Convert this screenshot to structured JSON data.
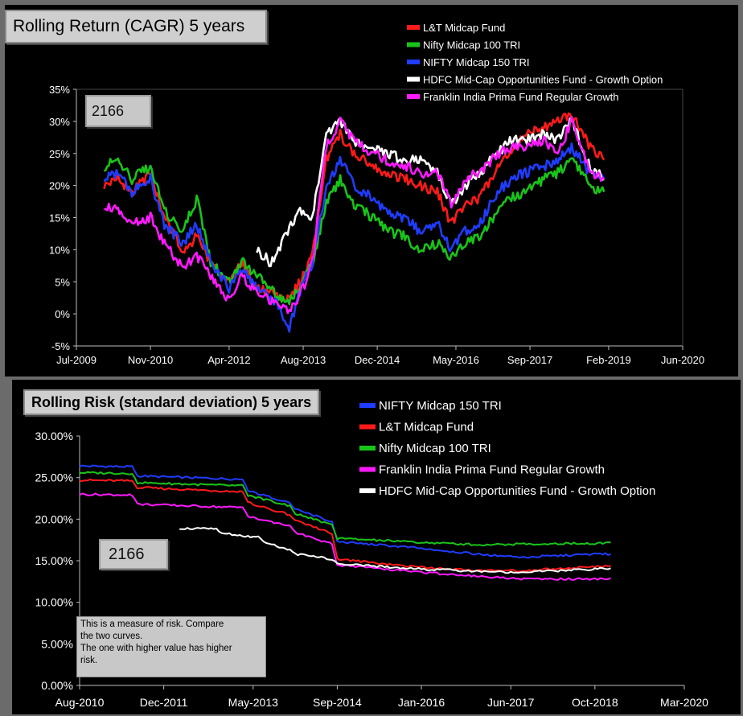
{
  "chart_data": [
    {
      "type": "line",
      "title": "Rolling Return (CAGR) 5 years",
      "badge": "2166",
      "xlim": [
        "Jul-2009",
        "Jun-2020"
      ],
      "ylim": [
        -5,
        35
      ],
      "x_tick_labels": [
        "Jul-2009",
        "Nov-2010",
        "Apr-2012",
        "Aug-2013",
        "Dec-2014",
        "May-2016",
        "Sep-2017",
        "Feb-2019",
        "Jun-2020"
      ],
      "y_tick_labels": [
        "-5%",
        "0%",
        "5%",
        "10%",
        "15%",
        "20%",
        "25%",
        "30%",
        "35%"
      ],
      "legend_position": "top-right",
      "series": [
        {
          "name": "L&T Midcap Fund",
          "color": "#ff1a1a",
          "x": [
            "Jan-2010",
            "Apr-2010",
            "Jul-2010",
            "Nov-2010",
            "Feb-2011",
            "Jun-2011",
            "Sep-2011",
            "Dec-2011",
            "Apr-2012",
            "Jul-2012",
            "Oct-2012",
            "Feb-2013",
            "May-2013",
            "Aug-2013",
            "Oct-2013",
            "Jan-2014",
            "Apr-2014",
            "Jul-2014",
            "Nov-2014",
            "Feb-2015",
            "Jun-2015",
            "Sep-2015",
            "Jan-2016",
            "Apr-2016",
            "Jul-2016",
            "Oct-2016",
            "Feb-2017",
            "May-2017",
            "Aug-2017",
            "Dec-2017",
            "Mar-2018",
            "Jun-2018",
            "Oct-2018",
            "Jan-2019"
          ],
          "y": [
            20,
            21,
            19,
            22,
            15,
            10,
            12,
            8,
            5,
            8,
            4,
            3,
            2,
            6,
            9,
            24,
            28,
            25,
            23,
            22,
            21,
            20,
            19,
            14,
            17,
            18,
            23,
            25,
            28,
            29,
            30,
            31,
            26,
            24
          ]
        },
        {
          "name": "Nifty Midcap 100 TRI",
          "color": "#19c419",
          "x": [
            "Jan-2010",
            "Apr-2010",
            "Jul-2010",
            "Nov-2010",
            "Feb-2011",
            "Jun-2011",
            "Sep-2011",
            "Dec-2011",
            "Apr-2012",
            "Jul-2012",
            "Oct-2012",
            "Feb-2013",
            "May-2013",
            "Aug-2013",
            "Oct-2013",
            "Jan-2014",
            "Apr-2014",
            "Jul-2014",
            "Nov-2014",
            "Feb-2015",
            "Jun-2015",
            "Sep-2015",
            "Jan-2016",
            "Apr-2016",
            "Jul-2016",
            "Oct-2016",
            "Feb-2017",
            "May-2017",
            "Aug-2017",
            "Dec-2017",
            "Mar-2018",
            "Jun-2018",
            "Oct-2018",
            "Jan-2019"
          ],
          "y": [
            23,
            24,
            21,
            23,
            16,
            13,
            18,
            8,
            5,
            8,
            6,
            3,
            2,
            5,
            8,
            17,
            21,
            17,
            15,
            13,
            12,
            10,
            11,
            9,
            11,
            12,
            16,
            18,
            19,
            21,
            22,
            24,
            20,
            19
          ]
        },
        {
          "name": "NIFTY Midcap 150 TRI",
          "color": "#1f3cff",
          "x": [
            "Jan-2010",
            "Apr-2010",
            "Jul-2010",
            "Nov-2010",
            "Feb-2011",
            "Jun-2011",
            "Sep-2011",
            "Dec-2011",
            "Apr-2012",
            "Jul-2012",
            "Oct-2012",
            "Feb-2013",
            "May-2013",
            "Aug-2013",
            "Oct-2013",
            "Jan-2014",
            "Apr-2014",
            "Jul-2014",
            "Nov-2014",
            "Feb-2015",
            "Jun-2015",
            "Sep-2015",
            "Jan-2016",
            "Apr-2016",
            "Jul-2016",
            "Oct-2016",
            "Feb-2017",
            "May-2017",
            "Aug-2017",
            "Dec-2017",
            "Mar-2018",
            "Jun-2018",
            "Oct-2018",
            "Jan-2019"
          ],
          "y": [
            21,
            22,
            19,
            21,
            14,
            11,
            14,
            8,
            4,
            7,
            4,
            2,
            -2,
            5,
            8,
            20,
            24,
            20,
            18,
            16,
            15,
            13,
            14,
            10,
            13,
            14,
            19,
            21,
            22,
            23,
            24,
            26,
            22,
            21
          ]
        },
        {
          "name": "HDFC Mid-Cap Opportunities Fund - Growth Option",
          "color": "#ffffff",
          "x": [
            "Oct-2012",
            "Jan-2013",
            "Apr-2013",
            "Jul-2013",
            "Oct-2013",
            "Jan-2014",
            "Apr-2014",
            "Jul-2014",
            "Nov-2014",
            "Feb-2015",
            "Jun-2015",
            "Sep-2015",
            "Jan-2016",
            "Apr-2016",
            "Jul-2016",
            "Oct-2016",
            "Feb-2017",
            "May-2017",
            "Aug-2017",
            "Dec-2017",
            "Mar-2018",
            "Jun-2018",
            "Oct-2018",
            "Jan-2019"
          ],
          "y": [
            10,
            8,
            12,
            16,
            15,
            28,
            30,
            27,
            26,
            25,
            24,
            24,
            22,
            17,
            20,
            22,
            25,
            27,
            27,
            28,
            27,
            30,
            23,
            21
          ]
        },
        {
          "name": "Franklin India Prima Fund Regular Growth",
          "color": "#ff1aff",
          "x": [
            "Jan-2010",
            "Apr-2010",
            "Jul-2010",
            "Nov-2010",
            "Feb-2011",
            "Jun-2011",
            "Sep-2011",
            "Dec-2011",
            "Apr-2012",
            "Jul-2012",
            "Oct-2012",
            "Feb-2013",
            "May-2013",
            "Aug-2013",
            "Oct-2013",
            "Jan-2014",
            "Apr-2014",
            "Jul-2014",
            "Nov-2014",
            "Feb-2015",
            "Jun-2015",
            "Sep-2015",
            "Jan-2016",
            "Apr-2016",
            "Jul-2016",
            "Oct-2016",
            "Feb-2017",
            "May-2017",
            "Aug-2017",
            "Dec-2017",
            "Mar-2018",
            "Jun-2018",
            "Oct-2018",
            "Jan-2019"
          ],
          "y": [
            17,
            16,
            14,
            15,
            11,
            7,
            9,
            6,
            2,
            6,
            3,
            2,
            0,
            4,
            8,
            26,
            30,
            27,
            25,
            24,
            23,
            22,
            22,
            17,
            21,
            22,
            25,
            26,
            26,
            27,
            25,
            30,
            22,
            21
          ]
        }
      ]
    },
    {
      "type": "line",
      "title": "Rolling Risk (standard deviation) 5 years",
      "badge": "2166",
      "note": [
        "This is a measure of risk.  Compare",
        "the two curves.",
        "The one with higher value has higher",
        "risk."
      ],
      "xlim": [
        "Aug-2010",
        "Mar-2020"
      ],
      "ylim": [
        0,
        30
      ],
      "x_tick_labels": [
        "Aug-2010",
        "Dec-2011",
        "May-2013",
        "Sep-2014",
        "Jan-2016",
        "Jun-2017",
        "Oct-2018",
        "Mar-2020"
      ],
      "y_tick_labels": [
        "0.00%",
        "5.00%",
        "10.00%",
        "15.00%",
        "20.00%",
        "25.00%",
        "30.00%"
      ],
      "legend_position": "top-right",
      "series": [
        {
          "name": "NIFTY Midcap 150 TRI",
          "color": "#1f3cff",
          "x": [
            "Aug-2010",
            "Jun-2011",
            "Jul-2011",
            "Mar-2013",
            "Apr-2013",
            "Dec-2013",
            "Jan-2014",
            "Aug-2014",
            "Sep-2014",
            "Jan-2016",
            "Jan-2017",
            "Aug-2017",
            "Oct-2018",
            "Jan-2019"
          ],
          "y": [
            26.4,
            26.3,
            25.2,
            24.8,
            23.4,
            22.0,
            21.2,
            19.7,
            17.3,
            16.5,
            15.7,
            15.4,
            15.8,
            15.8
          ]
        },
        {
          "name": "L&T Midcap Fund",
          "color": "#ff1a1a",
          "x": [
            "Aug-2010",
            "Jun-2011",
            "Jul-2011",
            "Mar-2013",
            "Apr-2013",
            "Dec-2013",
            "Jan-2014",
            "Aug-2014",
            "Sep-2014",
            "Jan-2016",
            "Jan-2017",
            "Aug-2017",
            "Oct-2018",
            "Jan-2019"
          ],
          "y": [
            24.7,
            24.6,
            23.8,
            23.3,
            22.0,
            20.5,
            19.8,
            18.3,
            15.2,
            14.2,
            13.8,
            13.8,
            14.3,
            14.4
          ]
        },
        {
          "name": "Nifty Midcap 100 TRI",
          "color": "#19c419",
          "x": [
            "Aug-2010",
            "Jun-2011",
            "Jul-2011",
            "Mar-2013",
            "Apr-2013",
            "Dec-2013",
            "Jan-2014",
            "Aug-2014",
            "Sep-2014",
            "Jan-2016",
            "Jan-2017",
            "Aug-2017",
            "Oct-2018",
            "Jan-2019"
          ],
          "y": [
            25.6,
            25.5,
            24.4,
            24.0,
            22.9,
            21.6,
            20.7,
            19.3,
            17.7,
            17.2,
            16.9,
            17.0,
            17.1,
            17.2
          ]
        },
        {
          "name": "Franklin India Prima Fund Regular Growth",
          "color": "#ff1aff",
          "x": [
            "Aug-2010",
            "Jun-2011",
            "Jul-2011",
            "Mar-2013",
            "Apr-2013",
            "Dec-2013",
            "Jan-2014",
            "Aug-2014",
            "Sep-2014",
            "Jan-2016",
            "Jan-2017",
            "Aug-2017",
            "Oct-2018",
            "Jan-2019"
          ],
          "y": [
            23.0,
            22.9,
            21.8,
            21.4,
            20.3,
            19.2,
            18.4,
            17.0,
            14.5,
            13.6,
            13.1,
            12.8,
            12.8,
            12.9
          ]
        },
        {
          "name": "HDFC Mid-Cap Opportunities Fund - Growth Option",
          "color": "#ffffff",
          "x": [
            "Mar-2012",
            "Oct-2012",
            "Nov-2012",
            "Jun-2013",
            "Jul-2013",
            "Dec-2013",
            "Jan-2014",
            "Aug-2014",
            "Sep-2014",
            "Jan-2016",
            "Jan-2017",
            "Aug-2017",
            "Oct-2018",
            "Jan-2019"
          ],
          "y": [
            18.9,
            18.8,
            18.3,
            17.8,
            17.2,
            16.3,
            15.8,
            15.2,
            14.6,
            14.0,
            13.7,
            13.6,
            14.0,
            14.1
          ]
        }
      ]
    }
  ]
}
